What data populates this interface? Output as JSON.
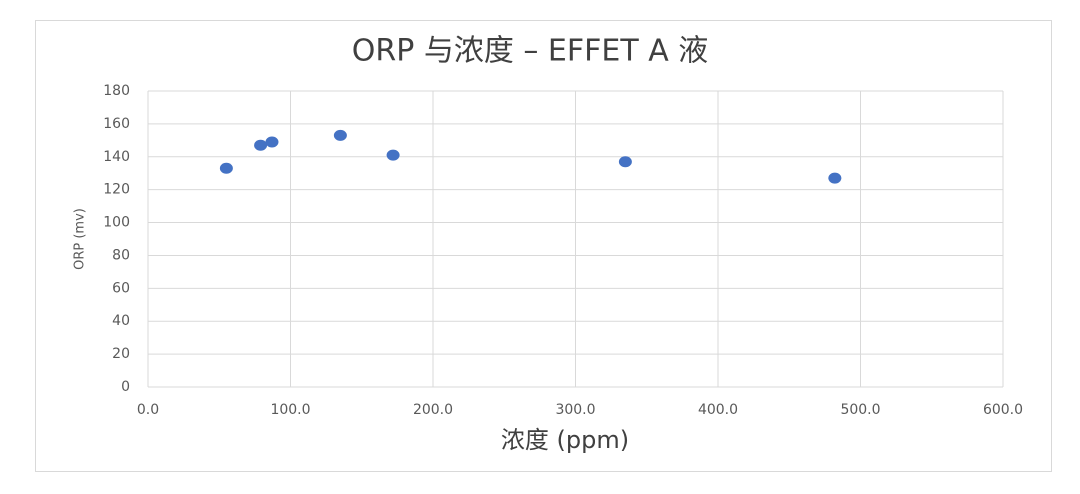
{
  "chart_data": {
    "type": "scatter",
    "title": "ORP 与浓度 – EFFET A 液",
    "x_label": "浓度 (ppm)",
    "y_label": "ORP (mv)",
    "series": [
      {
        "name": "ORP",
        "color": "#4472c4",
        "x": [
          55,
          79,
          87,
          135,
          172,
          335,
          482
        ],
        "values": [
          133,
          147,
          149,
          153,
          141,
          137,
          127
        ]
      }
    ],
    "xlim": [
      0,
      600
    ],
    "xticks": [
      {
        "value": 0,
        "label": "0.0"
      },
      {
        "value": 100,
        "label": "100.0"
      },
      {
        "value": 200,
        "label": "200.0"
      },
      {
        "value": 300,
        "label": "300.0"
      },
      {
        "value": 400,
        "label": "400.0"
      },
      {
        "value": 500,
        "label": "500.0"
      },
      {
        "value": 600,
        "label": "600.0"
      }
    ],
    "ylim": [
      0,
      180
    ],
    "yticks": [
      0,
      20,
      40,
      60,
      80,
      100,
      120,
      140,
      160,
      180
    ],
    "grid": true
  }
}
